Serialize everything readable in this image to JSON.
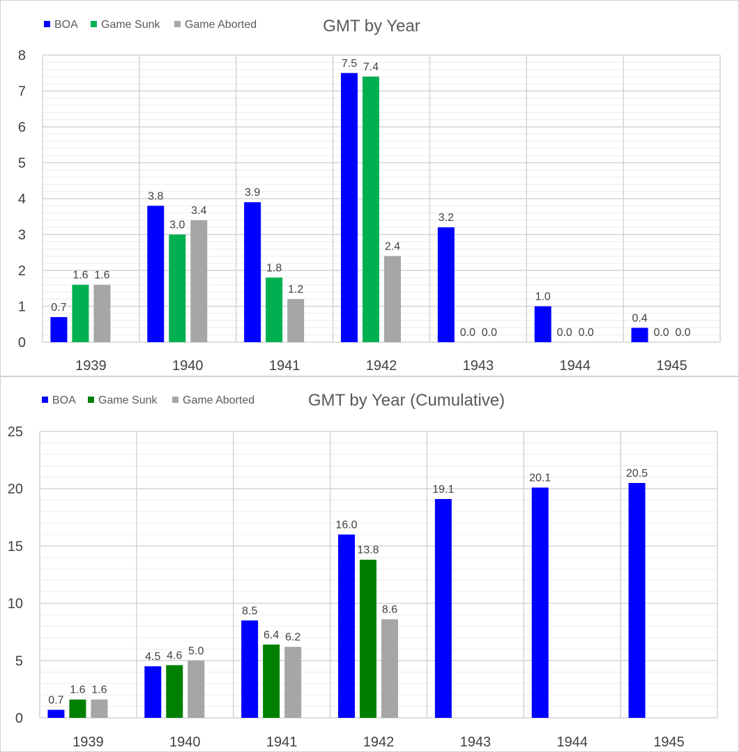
{
  "chart_data": [
    {
      "type": "bar",
      "title": "GMT by Year",
      "categories": [
        "1939",
        "1940",
        "1941",
        "1942",
        "1943",
        "1944",
        "1945"
      ],
      "series": [
        {
          "name": "BOA",
          "color": "#0000ff",
          "values": [
            0.7,
            3.8,
            3.9,
            7.5,
            3.2,
            1.0,
            0.4
          ],
          "labels": [
            "0.7",
            "3.8",
            "3.9",
            "7.5",
            "3.2",
            "1.0",
            "0.4"
          ]
        },
        {
          "name": "Game Sunk",
          "color": "#00b050",
          "values": [
            1.6,
            3.0,
            1.8,
            7.4,
            0.0,
            0.0,
            0.0
          ],
          "labels": [
            "1.6",
            "3.0",
            "1.8",
            "7.4",
            "0.0",
            "0.0",
            "0.0"
          ]
        },
        {
          "name": "Game Aborted",
          "color": "#a6a6a6",
          "values": [
            1.6,
            3.4,
            1.2,
            2.4,
            0.0,
            0.0,
            0.0
          ],
          "labels": [
            "1.6",
            "3.4",
            "1.2",
            "2.4",
            "0.0",
            "0.0",
            "0.0"
          ]
        }
      ],
      "ylim": [
        0,
        8
      ],
      "yticks": [
        "0",
        "1",
        "2",
        "3",
        "4",
        "5",
        "6",
        "7",
        "8"
      ],
      "legend": "top-left",
      "grid": true
    },
    {
      "type": "bar",
      "title": "GMT by Year (Cumulative)",
      "categories": [
        "1939",
        "1940",
        "1941",
        "1942",
        "1943",
        "1944",
        "1945"
      ],
      "series": [
        {
          "name": "BOA",
          "color": "#0000ff",
          "values": [
            0.7,
            4.5,
            8.5,
            16.0,
            19.1,
            20.1,
            20.5
          ],
          "labels": [
            "0.7",
            "4.5",
            "8.5",
            "16.0",
            "19.1",
            "20.1",
            "20.5"
          ]
        },
        {
          "name": "Game Sunk",
          "color": "#008000",
          "values": [
            1.6,
            4.6,
            6.4,
            13.8,
            null,
            null,
            null
          ],
          "labels": [
            "1.6",
            "4.6",
            "6.4",
            "13.8",
            null,
            null,
            null
          ]
        },
        {
          "name": "Game Aborted",
          "color": "#a6a6a6",
          "values": [
            1.6,
            5.0,
            6.2,
            8.6,
            null,
            null,
            null
          ],
          "labels": [
            "1.6",
            "5.0",
            "6.2",
            "8.6",
            null,
            null,
            null
          ]
        }
      ],
      "ylim": [
        0,
        25
      ],
      "yticks": [
        "0",
        "5",
        "10",
        "15",
        "20",
        "25"
      ],
      "legend": "top-left",
      "grid": true
    }
  ]
}
